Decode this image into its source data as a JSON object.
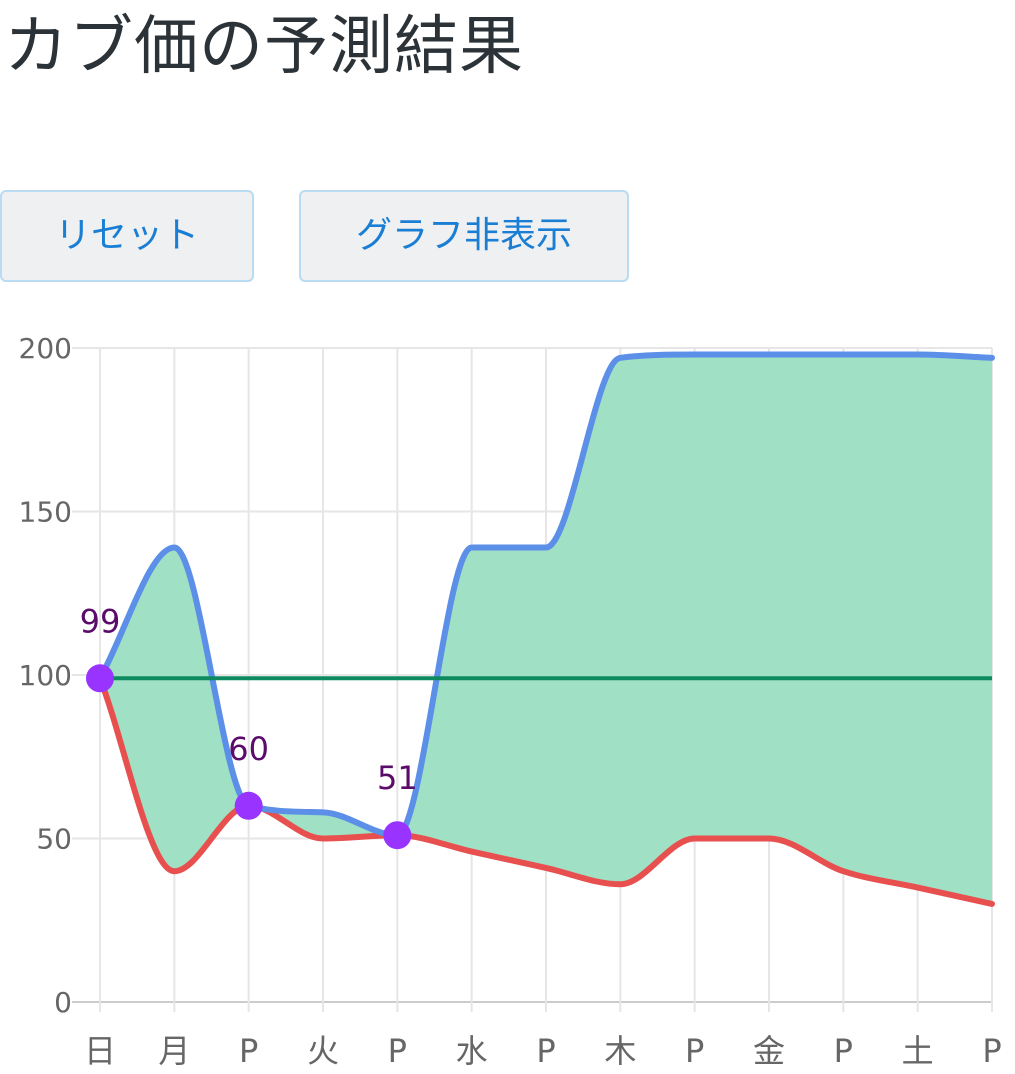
{
  "page": {
    "title": "カブ価の予測結果"
  },
  "buttons": {
    "reset": "リセット",
    "toggle_graph": "グラフ非表示"
  },
  "colors": {
    "max_line": "#5b8fe8",
    "min_line": "#e84f4f",
    "fill": "#a0e0c4",
    "base_line": "#0d8a5f",
    "point": "#9933ff",
    "point_label": "#5b0b6a",
    "grid": "#e6e6e6"
  },
  "chart_data": {
    "type": "area",
    "title": "",
    "xlabel": "",
    "ylabel": "",
    "ylim": [
      0,
      200
    ],
    "yticks": [
      0,
      50,
      100,
      150,
      200
    ],
    "categories": [
      "日",
      "月",
      "P",
      "火",
      "P",
      "水",
      "P",
      "木",
      "P",
      "金",
      "P",
      "土",
      "P"
    ],
    "series": [
      {
        "role": "max",
        "values": [
          99,
          139,
          60,
          58,
          51,
          139,
          139,
          197,
          198,
          198,
          198,
          198,
          197
        ]
      },
      {
        "role": "min",
        "values": [
          99,
          40,
          60,
          50,
          51,
          46,
          41,
          36,
          50,
          50,
          40,
          35,
          30
        ]
      },
      {
        "role": "base",
        "values": [
          99,
          99,
          99,
          99,
          99,
          99,
          99,
          99,
          99,
          99,
          99,
          99,
          99
        ]
      }
    ],
    "points": [
      {
        "index": 0,
        "value": 99,
        "label": "99"
      },
      {
        "index": 2,
        "value": 60,
        "label": "60"
      },
      {
        "index": 4,
        "value": 51,
        "label": "51"
      }
    ],
    "grid": true
  }
}
